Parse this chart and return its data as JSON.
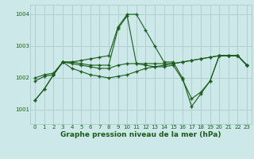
{
  "title": "Graphe pression niveau de la mer (hPa)",
  "bg_color": "#cce8e8",
  "grid_color": "#aacccc",
  "line_color": "#1a5c1a",
  "spine_color": "#aacccc",
  "xlim": [
    -0.5,
    23.5
  ],
  "ylim": [
    1000.55,
    1004.3
  ],
  "yticks": [
    1001,
    1002,
    1003,
    1004
  ],
  "xticks": [
    0,
    1,
    2,
    3,
    4,
    5,
    6,
    7,
    8,
    9,
    10,
    11,
    12,
    13,
    14,
    15,
    16,
    17,
    18,
    19,
    20,
    21,
    22,
    23
  ],
  "series1": [
    1001.3,
    1001.65,
    1002.1,
    1002.5,
    1002.5,
    1002.55,
    1002.6,
    1002.65,
    1002.7,
    1003.6,
    1004.0,
    1004.0,
    1003.5,
    1003.0,
    1002.5,
    1002.5,
    1002.0,
    1001.1,
    1001.5,
    1001.9,
    1002.7,
    1002.7,
    1002.7,
    1002.4
  ],
  "series2": [
    1002.0,
    1002.1,
    1002.15,
    1002.5,
    1002.45,
    1002.4,
    1002.35,
    1002.3,
    1002.3,
    1002.4,
    1002.45,
    1002.45,
    1002.45,
    1002.45,
    1002.45,
    1002.45,
    1002.5,
    1002.55,
    1002.6,
    1002.65,
    1002.7,
    1002.7,
    1002.7,
    1002.4
  ],
  "series3": [
    1001.9,
    1002.05,
    1002.1,
    1002.5,
    1002.3,
    1002.2,
    1002.1,
    1002.05,
    1002.0,
    1002.05,
    1002.1,
    1002.2,
    1002.3,
    1002.35,
    1002.4,
    1002.45,
    1002.5,
    1002.55,
    1002.6,
    1002.65,
    1002.7,
    1002.7,
    1002.7,
    1002.4
  ],
  "series4": [
    1001.3,
    1001.65,
    1002.1,
    1002.5,
    1002.5,
    1002.45,
    1002.4,
    1002.4,
    1002.4,
    1003.55,
    1003.95,
    1002.45,
    1002.4,
    1002.35,
    1002.35,
    1002.4,
    1001.95,
    1001.35,
    1001.55,
    1001.9,
    1002.7,
    1002.7,
    1002.7,
    1002.4
  ],
  "xlabel_fontsize": 6.5,
  "tick_fontsize": 5.0
}
